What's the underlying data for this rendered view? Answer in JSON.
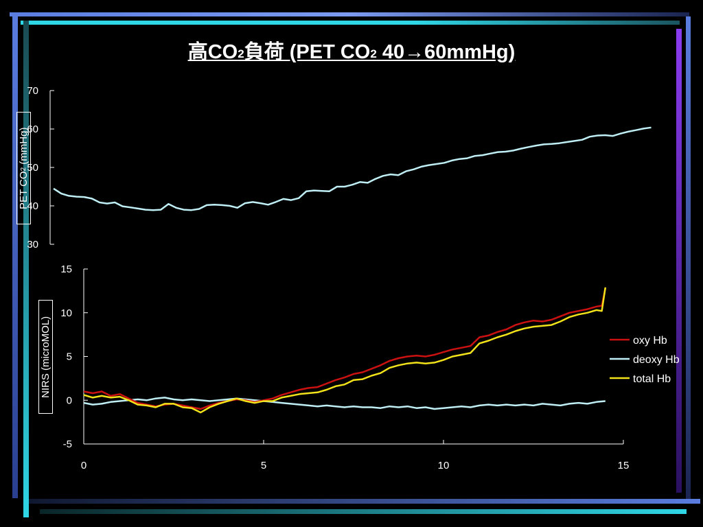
{
  "slide": {
    "title_prefix": "高CO",
    "title_sub": "2",
    "title_mid": "負荷 (PET CO",
    "title_sub2": "2",
    "title_suffix": " 40→60mmHg)",
    "top_ylabel_prefix": "PET CO",
    "top_ylabel_sub": "2",
    "top_ylabel_suffix": " (mmHg)",
    "bottom_ylabel": "NIRS (microMOL)",
    "colors": {
      "oxy": "#cc1111",
      "deoxy": "#bfeff5",
      "total": "#f2e21a",
      "petco2": "#bfeff5",
      "accent_blue": "#5a7de0",
      "accent_cyan": "#2fd6e6",
      "accent_purple": "#8a3cf0"
    }
  },
  "chart_data": [
    {
      "type": "line",
      "title": "",
      "xlabel": "",
      "ylabel": "PET CO2 (mmHg)",
      "xlim": [
        0,
        15
      ],
      "ylim": [
        30,
        70
      ],
      "yticks": [
        30,
        40,
        50,
        60,
        70
      ],
      "grid": false,
      "series": [
        {
          "name": "",
          "x": [
            0,
            0.2,
            0.4,
            0.6,
            0.8,
            1.0,
            1.2,
            1.4,
            1.6,
            1.8,
            2.0,
            2.2,
            2.4,
            2.6,
            2.8,
            3.0,
            3.2,
            3.4,
            3.6,
            3.8,
            4.0,
            4.2,
            4.4,
            4.6,
            4.8,
            5.0,
            5.2,
            5.4,
            5.6,
            5.8,
            6.0,
            6.2,
            6.4,
            6.6,
            6.8,
            7.0,
            7.2,
            7.4,
            7.6,
            7.8,
            8.0,
            8.2,
            8.4,
            8.6,
            8.8,
            9.0,
            9.2,
            9.4,
            9.6,
            9.8,
            10.0,
            10.2,
            10.4,
            10.6,
            10.8,
            11.0,
            11.2,
            11.4,
            11.6,
            11.8,
            12.0,
            12.2,
            12.4,
            12.6,
            12.8,
            13.0,
            13.2,
            13.4,
            13.6,
            13.8,
            14.0,
            14.2,
            14.4,
            14.6,
            14.8,
            15.0,
            15.2,
            15.4,
            15.6
          ],
          "values": [
            44.5,
            43.2,
            42.6,
            42.4,
            42.3,
            41.9,
            40.9,
            40.6,
            40.9,
            39.9,
            39.6,
            39.3,
            39.0,
            38.9,
            39.0,
            40.5,
            39.5,
            39.0,
            38.9,
            39.2,
            40.2,
            40.3,
            40.2,
            40.0,
            39.5,
            40.7,
            41.0,
            40.7,
            40.3,
            41.0,
            41.8,
            41.5,
            42.0,
            43.8,
            44.0,
            43.9,
            43.8,
            45.0,
            45.0,
            45.5,
            46.2,
            46.0,
            47.0,
            47.8,
            48.2,
            48.0,
            49.0,
            49.5,
            50.2,
            50.6,
            50.9,
            51.2,
            51.8,
            52.2,
            52.4,
            53.0,
            53.2,
            53.6,
            54.0,
            54.1,
            54.4,
            54.9,
            55.3,
            55.7,
            56.0,
            56.1,
            56.3,
            56.6,
            56.9,
            57.2,
            58.0,
            58.3,
            58.4,
            58.2,
            58.8,
            59.3,
            59.7,
            60.1,
            60.4
          ]
        }
      ]
    },
    {
      "type": "line",
      "title": "",
      "xlabel": "",
      "ylabel": "NIRS (microMOL)",
      "xlim": [
        0,
        15
      ],
      "ylim": [
        -5,
        15
      ],
      "xticks": [
        0,
        5,
        10,
        15
      ],
      "yticks": [
        -5,
        0,
        5,
        10,
        15
      ],
      "grid": false,
      "legend": "right",
      "series": [
        {
          "name": "oxy Hb",
          "x": [
            0,
            0.25,
            0.5,
            0.75,
            1.0,
            1.25,
            1.5,
            1.75,
            2.0,
            2.25,
            2.5,
            2.75,
            3.0,
            3.25,
            3.5,
            3.75,
            4.0,
            4.25,
            4.5,
            4.75,
            5.0,
            5.25,
            5.5,
            5.75,
            6.0,
            6.25,
            6.5,
            6.75,
            7.0,
            7.25,
            7.5,
            7.75,
            8.0,
            8.25,
            8.5,
            8.75,
            9.0,
            9.25,
            9.5,
            9.75,
            10.0,
            10.25,
            10.5,
            10.75,
            11.0,
            11.25,
            11.5,
            11.75,
            12.0,
            12.25,
            12.5,
            12.75,
            13.0,
            13.25,
            13.5,
            13.75,
            14.0,
            14.25,
            14.4,
            14.5
          ],
          "values": [
            1.0,
            0.8,
            1.0,
            0.5,
            0.7,
            0.2,
            -0.3,
            -0.5,
            -0.7,
            -0.5,
            -0.4,
            -0.6,
            -0.8,
            -1.0,
            -0.6,
            -0.3,
            -0.1,
            0.1,
            0.0,
            -0.2,
            0.0,
            0.2,
            0.6,
            0.9,
            1.2,
            1.4,
            1.5,
            1.9,
            2.3,
            2.6,
            3.0,
            3.2,
            3.6,
            4.0,
            4.5,
            4.8,
            5.0,
            5.1,
            5.0,
            5.2,
            5.5,
            5.8,
            6.0,
            6.2,
            7.2,
            7.4,
            7.8,
            8.1,
            8.6,
            8.9,
            9.1,
            9.0,
            9.2,
            9.6,
            10.0,
            10.2,
            10.4,
            10.7,
            10.8,
            12.8
          ]
        },
        {
          "name": "deoxy Hb",
          "x": [
            0,
            0.25,
            0.5,
            0.75,
            1.0,
            1.25,
            1.5,
            1.75,
            2.0,
            2.25,
            2.5,
            2.75,
            3.0,
            3.25,
            3.5,
            3.75,
            4.0,
            4.25,
            4.5,
            4.75,
            5.0,
            5.25,
            5.5,
            5.75,
            6.0,
            6.25,
            6.5,
            6.75,
            7.0,
            7.25,
            7.5,
            7.75,
            8.0,
            8.25,
            8.5,
            8.75,
            9.0,
            9.25,
            9.5,
            9.75,
            10.0,
            10.25,
            10.5,
            10.75,
            11.0,
            11.25,
            11.5,
            11.75,
            12.0,
            12.25,
            12.5,
            12.75,
            13.0,
            13.25,
            13.5,
            13.75,
            14.0,
            14.25,
            14.5
          ],
          "values": [
            -0.3,
            -0.5,
            -0.4,
            -0.2,
            -0.1,
            0.0,
            0.1,
            0.0,
            0.2,
            0.3,
            0.1,
            0.0,
            0.1,
            0.0,
            -0.1,
            0.0,
            0.1,
            0.2,
            0.1,
            0.0,
            -0.1,
            -0.2,
            -0.3,
            -0.4,
            -0.5,
            -0.6,
            -0.7,
            -0.6,
            -0.7,
            -0.8,
            -0.7,
            -0.8,
            -0.8,
            -0.9,
            -0.7,
            -0.8,
            -0.7,
            -0.9,
            -0.8,
            -1.0,
            -0.9,
            -0.8,
            -0.7,
            -0.8,
            -0.6,
            -0.5,
            -0.6,
            -0.5,
            -0.6,
            -0.5,
            -0.6,
            -0.4,
            -0.5,
            -0.6,
            -0.4,
            -0.3,
            -0.4,
            -0.2,
            -0.1
          ]
        },
        {
          "name": "total Hb",
          "x": [
            0,
            0.25,
            0.5,
            0.75,
            1.0,
            1.25,
            1.5,
            1.75,
            2.0,
            2.25,
            2.5,
            2.75,
            3.0,
            3.25,
            3.5,
            3.75,
            4.0,
            4.25,
            4.5,
            4.75,
            5.0,
            5.25,
            5.5,
            5.75,
            6.0,
            6.25,
            6.5,
            6.75,
            7.0,
            7.25,
            7.5,
            7.75,
            8.0,
            8.25,
            8.5,
            8.75,
            9.0,
            9.25,
            9.5,
            9.75,
            10.0,
            10.25,
            10.5,
            10.75,
            11.0,
            11.25,
            11.5,
            11.75,
            12.0,
            12.25,
            12.5,
            12.75,
            13.0,
            13.25,
            13.5,
            13.75,
            14.0,
            14.25,
            14.4,
            14.5
          ],
          "values": [
            0.6,
            0.3,
            0.5,
            0.3,
            0.4,
            0.0,
            -0.5,
            -0.6,
            -0.8,
            -0.4,
            -0.4,
            -0.8,
            -0.9,
            -1.4,
            -0.8,
            -0.4,
            -0.1,
            0.2,
            -0.1,
            -0.3,
            -0.1,
            -0.1,
            0.3,
            0.5,
            0.7,
            0.8,
            0.9,
            1.2,
            1.6,
            1.8,
            2.3,
            2.4,
            2.8,
            3.1,
            3.7,
            4.0,
            4.2,
            4.3,
            4.2,
            4.3,
            4.6,
            5.0,
            5.2,
            5.4,
            6.5,
            6.8,
            7.2,
            7.5,
            7.9,
            8.2,
            8.4,
            8.5,
            8.6,
            9.0,
            9.5,
            9.8,
            10.0,
            10.3,
            10.2,
            12.9
          ]
        }
      ]
    }
  ]
}
